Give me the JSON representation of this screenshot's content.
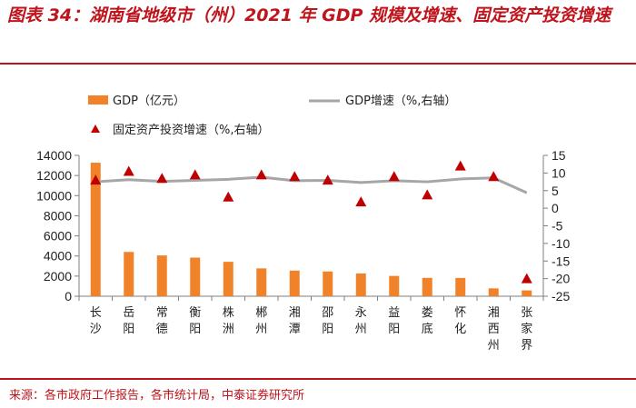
{
  "title": "图表 34：湖南省地级市（州）2021 年 GDP 规模及增速、固定资产投资增速",
  "source": "来源：各市政府工作报告，各市统计局，中泰证券研究所",
  "colors": {
    "accent": "#c0141c",
    "bar": "#f0822a",
    "line": "#a6a6a6",
    "marker": "#c00000"
  },
  "chart_data": {
    "type": "bar",
    "categories": [
      "长沙",
      "岳阳",
      "常德",
      "衡阳",
      "株洲",
      "郴州",
      "湘潭",
      "邵阳",
      "永州",
      "益阳",
      "娄底",
      "怀化",
      "湘西州",
      "张家界"
    ],
    "series": [
      {
        "name": "GDP（亿元）",
        "type": "bar",
        "axis": "left",
        "values": [
          13271,
          4402,
          4054,
          3840,
          3421,
          2770,
          2548,
          2461,
          2261,
          2019,
          1826,
          1817,
          782,
          580
        ]
      },
      {
        "name": "GDP增速（%,右轴）",
        "type": "line",
        "axis": "right",
        "values": [
          7.5,
          8.1,
          7.6,
          7.9,
          8.2,
          8.8,
          7.8,
          7.9,
          7.3,
          7.8,
          7.5,
          8.3,
          8.6,
          4.4
        ]
      },
      {
        "name": "固定资产投资增速（%,右轴）",
        "type": "scatter",
        "axis": "right",
        "values": [
          8.0,
          10.5,
          8.5,
          9.5,
          3.2,
          9.5,
          9.0,
          8.0,
          1.8,
          9.0,
          3.8,
          12.0,
          9.0,
          -20.0
        ]
      }
    ],
    "y_left": {
      "min": 0,
      "max": 14000,
      "ticks": [
        "0",
        "2000",
        "4000",
        "6000",
        "8000",
        "10000",
        "12000",
        "14000"
      ]
    },
    "y_right": {
      "min": -25,
      "max": 15,
      "ticks": [
        "-25",
        "-20",
        "-15",
        "-10",
        "-5",
        "0",
        "5",
        "10",
        "15"
      ]
    },
    "legend": [
      "GDP（亿元）",
      "GDP增速（%,右轴）",
      "固定资产投资增速（%,右轴）"
    ],
    "legend_position": "top"
  }
}
